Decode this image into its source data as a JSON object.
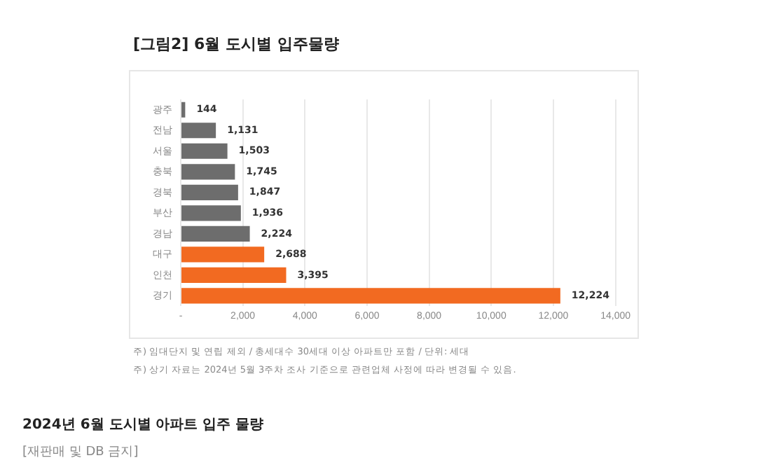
{
  "chart_data": {
    "type": "bar",
    "orientation": "horizontal",
    "title": "[그림2] 6월 도시별 입주물량",
    "categories": [
      "광주",
      "전남",
      "서울",
      "충북",
      "경북",
      "부산",
      "경남",
      "대구",
      "인천",
      "경기"
    ],
    "values": [
      144,
      1131,
      1503,
      1745,
      1847,
      1936,
      2224,
      2688,
      3395,
      12224
    ],
    "colors": [
      "#6d6d6d",
      "#6d6d6d",
      "#6d6d6d",
      "#6d6d6d",
      "#6d6d6d",
      "#6d6d6d",
      "#6d6d6d",
      "#f26a21",
      "#f26a21",
      "#f26a21"
    ],
    "xlim": [
      0,
      14000
    ],
    "xticks": [
      {
        "value": 0,
        "label": "-"
      },
      {
        "value": 2000,
        "label": "2,000"
      },
      {
        "value": 4000,
        "label": "4,000"
      },
      {
        "value": 6000,
        "label": "6,000"
      },
      {
        "value": 8000,
        "label": "8,000"
      },
      {
        "value": 10000,
        "label": "10,000"
      },
      {
        "value": 12000,
        "label": "12,000"
      },
      {
        "value": 14000,
        "label": "14,000"
      }
    ],
    "value_labels": [
      "144",
      "1,131",
      "1,503",
      "1,745",
      "1,847",
      "1,936",
      "2,224",
      "2,688",
      "3,395",
      "12,224"
    ],
    "grid": "x",
    "legend": false,
    "annotations": [
      "주) 임대단지 및 연립 제외 / 총세대수 30세대 이상 아파트만 포함 / 단위: 세대",
      "주) 상기 자료는 2024년 5월 3주차 조사 기준으로 관련업체 사정에 따라 변경될 수 있음.",
      "2024년 6월 도시별 아파트 입주 물량",
      "[재판매 및 DB 금지]"
    ]
  }
}
